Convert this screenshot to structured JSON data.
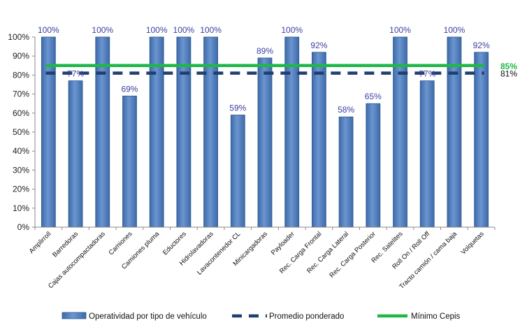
{
  "chart_data": {
    "type": "bar",
    "categories": [
      "Amplirroll",
      "Barredoras",
      "Cajas autocompactadoras",
      "Camiones",
      "Camiones pluma",
      "Eductores",
      "Hidrolavadoras",
      "Lavacontenedor CL",
      "Minicargadoras",
      "Payloader",
      "Rec. Carga Frontal",
      "Rec. Carga Lateral",
      "Rec. Carga Posterior",
      "Rec. Satelites",
      "Roll On / Roll Off",
      "Tracto camión / cama baja",
      "Volquetas"
    ],
    "series": [
      {
        "name": "Operatividad por tipo de vehículo",
        "values": [
          100,
          77,
          100,
          69,
          100,
          100,
          100,
          59,
          89,
          100,
          92,
          58,
          65,
          100,
          77,
          100,
          92
        ]
      }
    ],
    "data_labels": [
      "100%",
      "77%",
      "100%",
      "69%",
      "100%",
      "100%",
      "100%",
      "59%",
      "89%",
      "100%",
      "92%",
      "58%",
      "65%",
      "100%",
      "77%",
      "100%",
      "92%"
    ],
    "reference_lines": [
      {
        "name": "Promedio ponderado",
        "value": 81,
        "label": "81%",
        "style": "dashed",
        "color": "#1f3f6e"
      },
      {
        "name": "Mínimo Cepis",
        "value": 85,
        "label": "85%",
        "style": "solid",
        "color": "#1fb848"
      }
    ],
    "y_ticks": [
      "0%",
      "10%",
      "20%",
      "30%",
      "40%",
      "50%",
      "60%",
      "70%",
      "80%",
      "90%",
      "100%"
    ],
    "ylim": [
      0,
      100
    ],
    "grid": false,
    "legend_position": "bottom",
    "colors": {
      "bar": "#4f81bd",
      "bar_dark": "#2c5a94",
      "average": "#1f3f6e",
      "minimum": "#1fb848",
      "data_label": "#3b3fa0"
    }
  }
}
